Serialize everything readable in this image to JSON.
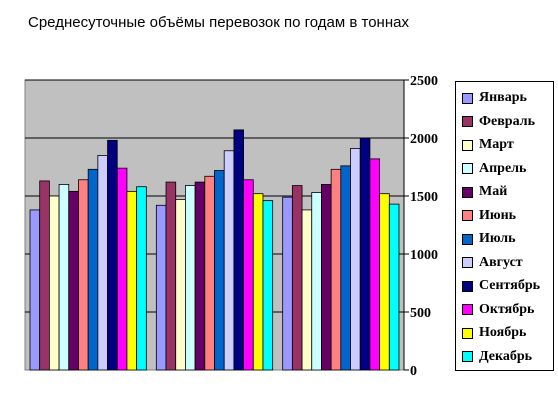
{
  "chart_data": {
    "type": "bar",
    "title": "Среднесуточные объёмы перевозок по годам в тоннах",
    "categories": [
      "",
      "",
      ""
    ],
    "ylim": [
      0,
      2500
    ],
    "yticks": [
      "0",
      "500",
      "1000",
      "1500",
      "2000",
      "2500"
    ],
    "grid": true,
    "y_axis_position": "right",
    "legend_position": "right",
    "plot_background": "#c0c0c0",
    "series": [
      {
        "name": "Январь",
        "color": "#9999ff",
        "values": [
          1380,
          1420,
          1490
        ]
      },
      {
        "name": "Февраль",
        "color": "#993366",
        "values": [
          1630,
          1620,
          1590
        ]
      },
      {
        "name": "Март",
        "color": "#ffffcc",
        "values": [
          1500,
          1470,
          1380
        ]
      },
      {
        "name": "Апрель",
        "color": "#ccffff",
        "values": [
          1600,
          1590,
          1530
        ]
      },
      {
        "name": "Май",
        "color": "#660066",
        "values": [
          1540,
          1620,
          1600
        ]
      },
      {
        "name": "Июнь",
        "color": "#ff8080",
        "values": [
          1640,
          1670,
          1730
        ]
      },
      {
        "name": "Июль",
        "color": "#0066cc",
        "values": [
          1730,
          1720,
          1760
        ]
      },
      {
        "name": "Август",
        "color": "#ccccff",
        "values": [
          1850,
          1890,
          1910
        ]
      },
      {
        "name": "Сентябрь",
        "color": "#000080",
        "values": [
          1980,
          2070,
          2000
        ]
      },
      {
        "name": "Октябрь",
        "color": "#ff00ff",
        "values": [
          1740,
          1640,
          1820
        ]
      },
      {
        "name": "Ноябрь",
        "color": "#ffff00",
        "values": [
          1540,
          1520,
          1520
        ]
      },
      {
        "name": "Декабрь",
        "color": "#00ffff",
        "values": [
          1580,
          1460,
          1430
        ]
      }
    ]
  }
}
